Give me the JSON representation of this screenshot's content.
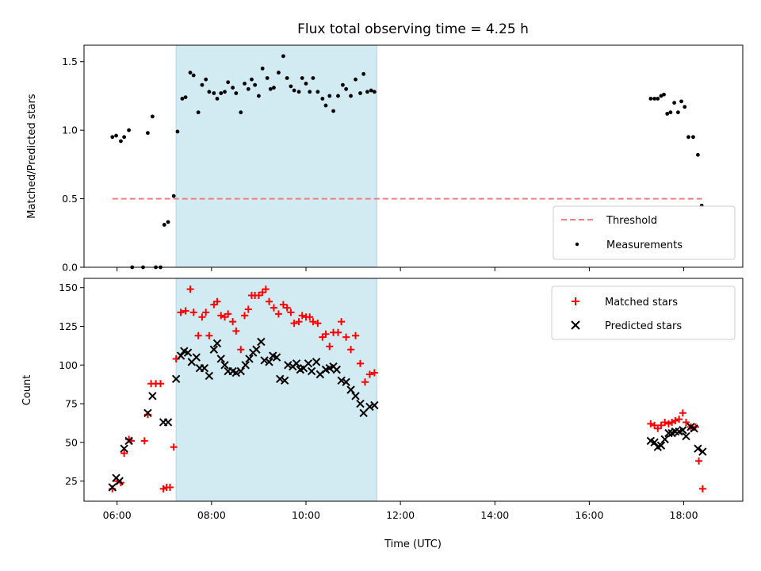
{
  "chart_data": [
    {
      "type": "scatter",
      "title": "Flux total observing time = 4.25 h",
      "xlabel": "",
      "ylabel": "Matched/Predicted stars",
      "ylim": [
        0,
        1.62
      ],
      "yticks": [
        0.0,
        0.5,
        1.0,
        1.5
      ],
      "ytick_labels": [
        "0.0",
        "0.5",
        "1.0",
        "1.5"
      ],
      "xlim_hours": [
        5.3,
        19.25
      ],
      "xticks_hours": [
        6,
        8,
        10,
        12,
        14,
        16,
        18
      ],
      "shaded_span_hours": [
        7.25,
        11.5
      ],
      "shade_color": "#add8e6",
      "threshold": {
        "name": "Threshold",
        "y": 0.5,
        "x_range_hours": [
          5.9,
          18.4
        ],
        "color": "#f08080"
      },
      "legend_position": "lower-right",
      "series": [
        {
          "name": "Measurements",
          "color": "#000000",
          "marker": "dot",
          "points": [
            [
              5.9,
              0.95
            ],
            [
              5.98,
              0.96
            ],
            [
              6.08,
              0.92
            ],
            [
              6.15,
              0.95
            ],
            [
              6.25,
              1.0
            ],
            [
              6.32,
              0.0
            ],
            [
              6.55,
              0.0
            ],
            [
              6.65,
              0.98
            ],
            [
              6.75,
              1.1
            ],
            [
              6.82,
              0.0
            ],
            [
              6.92,
              0.0
            ],
            [
              7.0,
              0.31
            ],
            [
              7.08,
              0.33
            ],
            [
              7.2,
              0.52
            ],
            [
              7.28,
              0.99
            ],
            [
              7.38,
              1.23
            ],
            [
              7.45,
              1.24
            ],
            [
              7.55,
              1.42
            ],
            [
              7.62,
              1.4
            ],
            [
              7.72,
              1.13
            ],
            [
              7.8,
              1.33
            ],
            [
              7.88,
              1.37
            ],
            [
              7.95,
              1.28
            ],
            [
              8.05,
              1.27
            ],
            [
              8.12,
              1.23
            ],
            [
              8.2,
              1.27
            ],
            [
              8.28,
              1.28
            ],
            [
              8.35,
              1.35
            ],
            [
              8.45,
              1.31
            ],
            [
              8.52,
              1.27
            ],
            [
              8.62,
              1.13
            ],
            [
              8.7,
              1.34
            ],
            [
              8.78,
              1.3
            ],
            [
              8.85,
              1.37
            ],
            [
              8.92,
              1.33
            ],
            [
              9.0,
              1.25
            ],
            [
              9.08,
              1.45
            ],
            [
              9.18,
              1.38
            ],
            [
              9.25,
              1.3
            ],
            [
              9.32,
              1.31
            ],
            [
              9.42,
              1.42
            ],
            [
              9.52,
              1.54
            ],
            [
              9.6,
              1.38
            ],
            [
              9.68,
              1.32
            ],
            [
              9.75,
              1.29
            ],
            [
              9.85,
              1.28
            ],
            [
              9.92,
              1.38
            ],
            [
              10.0,
              1.34
            ],
            [
              10.08,
              1.28
            ],
            [
              10.15,
              1.38
            ],
            [
              10.25,
              1.28
            ],
            [
              10.35,
              1.23
            ],
            [
              10.42,
              1.18
            ],
            [
              10.5,
              1.25
            ],
            [
              10.58,
              1.14
            ],
            [
              10.68,
              1.25
            ],
            [
              10.78,
              1.33
            ],
            [
              10.85,
              1.3
            ],
            [
              10.95,
              1.25
            ],
            [
              11.05,
              1.37
            ],
            [
              11.15,
              1.27
            ],
            [
              11.22,
              1.41
            ],
            [
              11.3,
              1.28
            ],
            [
              11.38,
              1.29
            ],
            [
              11.45,
              1.28
            ],
            [
              17.3,
              1.23
            ],
            [
              17.38,
              1.23
            ],
            [
              17.45,
              1.23
            ],
            [
              17.52,
              1.25
            ],
            [
              17.58,
              1.26
            ],
            [
              17.65,
              1.12
            ],
            [
              17.72,
              1.13
            ],
            [
              17.8,
              1.2
            ],
            [
              17.88,
              1.13
            ],
            [
              17.95,
              1.21
            ],
            [
              18.02,
              1.17
            ],
            [
              18.1,
              0.95
            ],
            [
              18.2,
              0.95
            ],
            [
              18.3,
              0.82
            ],
            [
              18.38,
              0.45
            ]
          ]
        }
      ]
    },
    {
      "type": "scatter",
      "title": "",
      "xlabel": "Time (UTC)",
      "ylabel": "Count",
      "ylim": [
        12,
        156
      ],
      "yticks": [
        25,
        50,
        75,
        100,
        125,
        150
      ],
      "ytick_labels": [
        "25",
        "50",
        "75",
        "100",
        "125",
        "150"
      ],
      "xlim_hours": [
        5.3,
        19.25
      ],
      "xticks_hours": [
        6,
        8,
        10,
        12,
        14,
        16,
        18
      ],
      "xtick_labels": [
        "06:00",
        "08:00",
        "10:00",
        "12:00",
        "14:00",
        "16:00",
        "18:00"
      ],
      "shaded_span_hours": [
        7.25,
        11.5
      ],
      "shade_color": "#add8e6",
      "legend_position": "upper-right",
      "series": [
        {
          "name": "Matched stars",
          "color": "#ff0000",
          "marker": "plus",
          "points": [
            [
              5.9,
              20
            ],
            [
              6.0,
              25
            ],
            [
              6.08,
              24
            ],
            [
              6.15,
              43
            ],
            [
              6.25,
              52
            ],
            [
              6.3,
              51
            ],
            [
              6.58,
              51
            ],
            [
              6.65,
              68
            ],
            [
              6.72,
              88
            ],
            [
              6.82,
              88
            ],
            [
              6.92,
              88
            ],
            [
              6.98,
              20
            ],
            [
              7.05,
              21
            ],
            [
              7.12,
              21
            ],
            [
              7.2,
              47
            ],
            [
              7.25,
              104
            ],
            [
              7.35,
              134
            ],
            [
              7.45,
              135
            ],
            [
              7.55,
              149
            ],
            [
              7.62,
              134
            ],
            [
              7.72,
              119
            ],
            [
              7.8,
              131
            ],
            [
              7.88,
              134
            ],
            [
              7.95,
              119
            ],
            [
              8.05,
              139
            ],
            [
              8.12,
              141
            ],
            [
              8.2,
              132
            ],
            [
              8.28,
              131
            ],
            [
              8.35,
              133
            ],
            [
              8.45,
              128
            ],
            [
              8.52,
              122
            ],
            [
              8.62,
              110
            ],
            [
              8.7,
              132
            ],
            [
              8.78,
              136
            ],
            [
              8.85,
              145
            ],
            [
              8.92,
              145
            ],
            [
              9.0,
              145
            ],
            [
              9.08,
              147
            ],
            [
              9.15,
              149
            ],
            [
              9.22,
              141
            ],
            [
              9.32,
              137
            ],
            [
              9.42,
              133
            ],
            [
              9.52,
              139
            ],
            [
              9.6,
              137
            ],
            [
              9.68,
              134
            ],
            [
              9.75,
              127
            ],
            [
              9.85,
              128
            ],
            [
              9.92,
              132
            ],
            [
              10.0,
              131
            ],
            [
              10.08,
              131
            ],
            [
              10.15,
              128
            ],
            [
              10.25,
              127
            ],
            [
              10.35,
              118
            ],
            [
              10.42,
              120
            ],
            [
              10.5,
              112
            ],
            [
              10.58,
              121
            ],
            [
              10.68,
              121
            ],
            [
              10.75,
              128
            ],
            [
              10.85,
              118
            ],
            [
              10.95,
              110
            ],
            [
              11.05,
              119
            ],
            [
              11.15,
              101
            ],
            [
              11.25,
              89
            ],
            [
              11.35,
              94
            ],
            [
              11.45,
              95
            ],
            [
              17.3,
              62
            ],
            [
              17.38,
              61
            ],
            [
              17.45,
              59
            ],
            [
              17.52,
              61
            ],
            [
              17.6,
              63
            ],
            [
              17.68,
              62
            ],
            [
              17.75,
              63
            ],
            [
              17.82,
              64
            ],
            [
              17.9,
              65
            ],
            [
              17.98,
              69
            ],
            [
              18.05,
              63
            ],
            [
              18.15,
              60
            ],
            [
              18.25,
              60
            ],
            [
              18.32,
              38
            ],
            [
              18.4,
              20
            ]
          ]
        },
        {
          "name": "Predicted stars",
          "color": "#000000",
          "marker": "x",
          "points": [
            [
              5.9,
              21
            ],
            [
              5.98,
              27
            ],
            [
              6.05,
              25
            ],
            [
              6.15,
              46
            ],
            [
              6.25,
              51
            ],
            [
              6.65,
              69
            ],
            [
              6.75,
              80
            ],
            [
              6.98,
              63
            ],
            [
              7.08,
              63
            ],
            [
              7.25,
              91
            ],
            [
              7.35,
              106
            ],
            [
              7.42,
              109
            ],
            [
              7.5,
              108
            ],
            [
              7.58,
              102
            ],
            [
              7.68,
              105
            ],
            [
              7.75,
              98
            ],
            [
              7.85,
              98
            ],
            [
              7.95,
              93
            ],
            [
              8.05,
              110
            ],
            [
              8.12,
              114
            ],
            [
              8.2,
              104
            ],
            [
              8.28,
              100
            ],
            [
              8.35,
              96
            ],
            [
              8.45,
              96
            ],
            [
              8.52,
              95
            ],
            [
              8.62,
              96
            ],
            [
              8.72,
              100
            ],
            [
              8.8,
              104
            ],
            [
              8.88,
              108
            ],
            [
              8.95,
              110
            ],
            [
              9.05,
              115
            ],
            [
              9.12,
              103
            ],
            [
              9.22,
              102
            ],
            [
              9.3,
              106
            ],
            [
              9.38,
              105
            ],
            [
              9.45,
              91
            ],
            [
              9.55,
              90
            ],
            [
              9.62,
              100
            ],
            [
              9.72,
              99
            ],
            [
              9.8,
              101
            ],
            [
              9.88,
              97
            ],
            [
              9.95,
              98
            ],
            [
              10.05,
              101
            ],
            [
              10.12,
              96
            ],
            [
              10.22,
              102
            ],
            [
              10.3,
              94
            ],
            [
              10.42,
              97
            ],
            [
              10.5,
              98
            ],
            [
              10.58,
              99
            ],
            [
              10.65,
              97
            ],
            [
              10.75,
              90
            ],
            [
              10.85,
              89
            ],
            [
              10.95,
              84
            ],
            [
              11.05,
              80
            ],
            [
              11.15,
              75
            ],
            [
              11.22,
              69
            ],
            [
              11.35,
              73
            ],
            [
              11.45,
              74
            ],
            [
              17.3,
              51
            ],
            [
              17.38,
              50
            ],
            [
              17.45,
              47
            ],
            [
              17.52,
              48
            ],
            [
              17.6,
              52
            ],
            [
              17.68,
              56
            ],
            [
              17.75,
              56
            ],
            [
              17.82,
              57
            ],
            [
              17.9,
              57
            ],
            [
              17.98,
              58
            ],
            [
              18.05,
              54
            ],
            [
              18.15,
              60
            ],
            [
              18.22,
              59
            ],
            [
              18.3,
              46
            ],
            [
              18.4,
              44
            ]
          ]
        }
      ]
    }
  ]
}
